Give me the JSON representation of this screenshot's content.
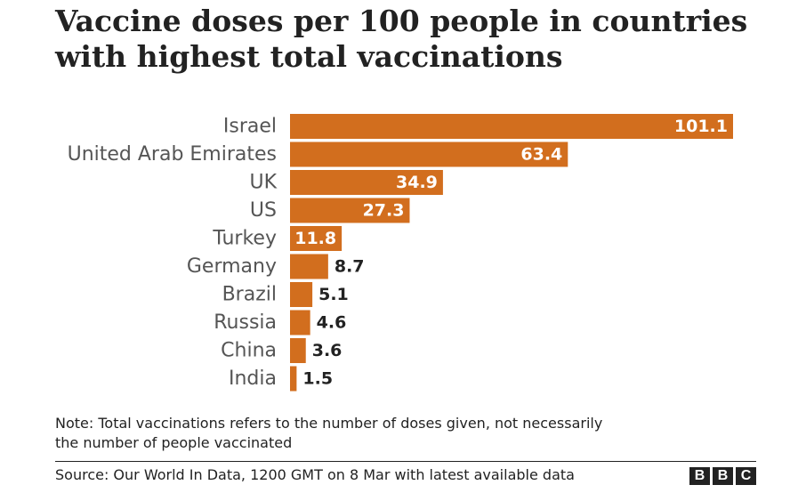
{
  "title_lines": [
    "Vaccine doses per 100 people in countries",
    "with highest total vaccinations"
  ],
  "chart_data": {
    "type": "bar",
    "orientation": "horizontal",
    "title": "Vaccine doses per 100 people in countries with highest total vaccinations",
    "categories": [
      "Israel",
      "United Arab Emirates",
      "UK",
      "US",
      "Turkey",
      "Germany",
      "Brazil",
      "Russia",
      "China",
      "India"
    ],
    "values": [
      101.1,
      63.4,
      34.9,
      27.3,
      11.8,
      8.7,
      5.1,
      4.6,
      3.6,
      1.5
    ],
    "value_labels": [
      "101.1",
      "63.4",
      "34.9",
      "27.3",
      "11.8",
      "8.7",
      "5.1",
      "4.6",
      "3.6",
      "1.5"
    ],
    "xlim": [
      0,
      101.1
    ],
    "grid": false,
    "bar_color": "#d26e1e",
    "label_inside_color": "#ffffff",
    "label_outside_color": "#222222"
  },
  "note_lines": [
    "Note: Total vaccinations refers to the number of doses given, not necessarily",
    "the number of people vaccinated"
  ],
  "source": "Source: Our World In Data, 1200 GMT on 8 Mar with latest available data",
  "logo": [
    "B",
    "B",
    "C"
  ]
}
